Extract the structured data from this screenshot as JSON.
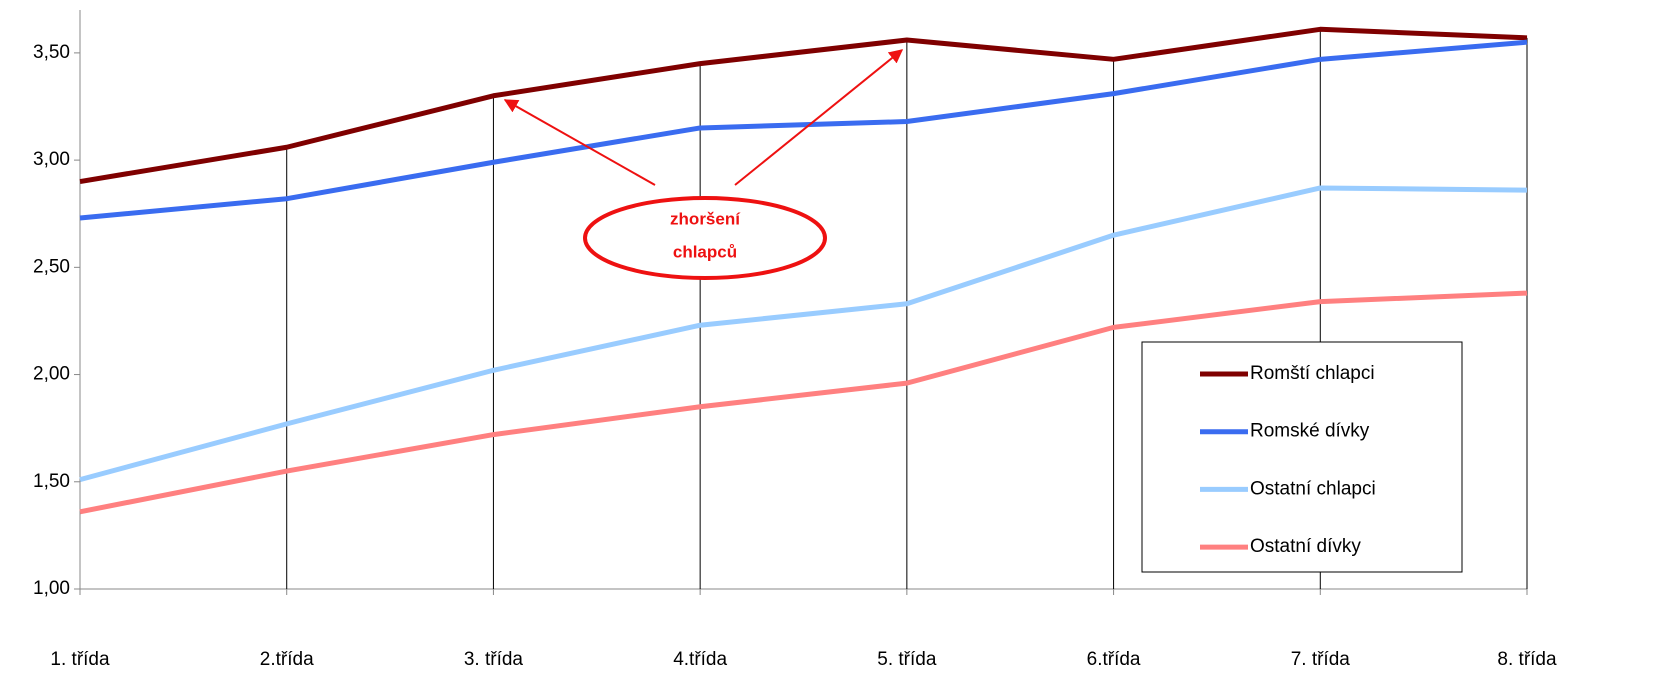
{
  "chart_data": {
    "type": "line",
    "categories": [
      "1. třída",
      "2.třída",
      "3. třída",
      "4.třída",
      "5. třída",
      "6.třída",
      "7. třída",
      "8. třída"
    ],
    "series": [
      {
        "name": "Romští chlapci",
        "color": "#7f0000",
        "values": [
          2.9,
          3.06,
          3.3,
          3.45,
          3.56,
          3.47,
          3.61,
          3.57
        ]
      },
      {
        "name": "Romské dívky",
        "color": "#3a6cf0",
        "values": [
          2.73,
          2.82,
          2.99,
          3.15,
          3.18,
          3.31,
          3.47,
          3.55
        ]
      },
      {
        "name": "Ostatní chlapci",
        "color": "#99ccff",
        "values": [
          1.51,
          1.77,
          2.02,
          2.23,
          2.33,
          2.65,
          2.87,
          2.86
        ]
      },
      {
        "name": "Ostatní dívky",
        "color": "#ff8080",
        "values": [
          1.36,
          1.55,
          1.72,
          1.85,
          1.96,
          2.22,
          2.34,
          2.38
        ]
      }
    ],
    "ylim": [
      1,
      3.7
    ],
    "yticks": [
      {
        "value": 1,
        "label": "1,00"
      },
      {
        "value": 1.5,
        "label": "1,50"
      },
      {
        "value": 2,
        "label": "2,00"
      },
      {
        "value": 2.5,
        "label": "2,50"
      },
      {
        "value": 3,
        "label": "3,00"
      },
      {
        "value": 3.5,
        "label": "3,50"
      }
    ],
    "drop_lines": true,
    "legend": "lower right",
    "annotation": [
      "zhoršení",
      "chlapců"
    ],
    "annotation_color": "#ee1111"
  }
}
